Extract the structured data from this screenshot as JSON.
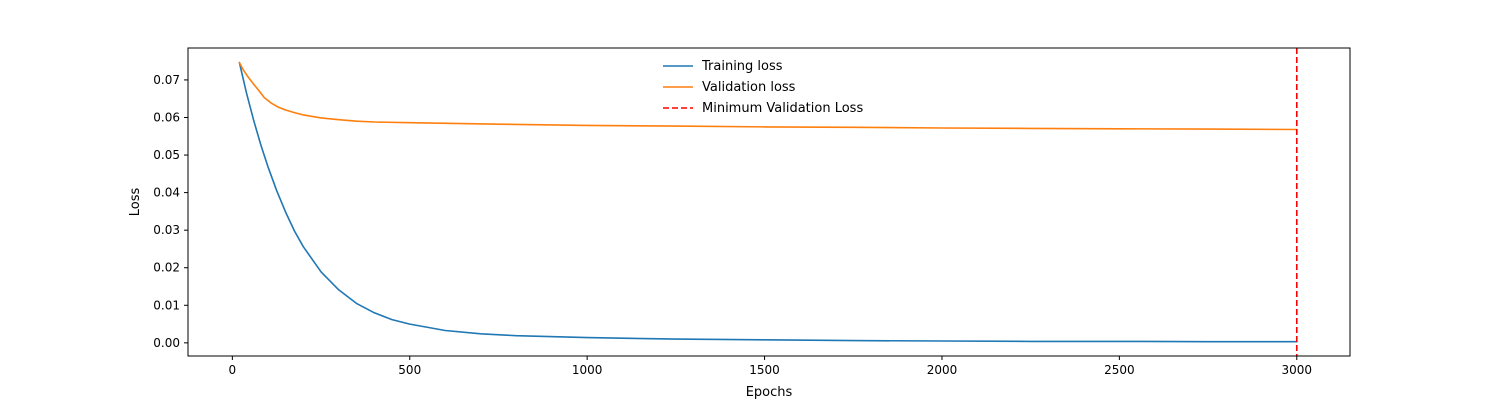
{
  "chart_data": {
    "type": "line",
    "title": "",
    "xlabel": "Epochs",
    "ylabel": "Loss",
    "xlim": [
      -125,
      3150
    ],
    "ylim": [
      -0.0035,
      0.0785
    ],
    "xticks": [
      0,
      500,
      1000,
      1500,
      2000,
      2500,
      3000
    ],
    "xtick_labels": [
      "0",
      "500",
      "1000",
      "1500",
      "2000",
      "2500",
      "3000"
    ],
    "yticks": [
      0.0,
      0.01,
      0.02,
      0.03,
      0.04,
      0.05,
      0.06,
      0.07
    ],
    "ytick_labels": [
      "0.00",
      "0.01",
      "0.02",
      "0.03",
      "0.04",
      "0.05",
      "0.06",
      "0.07"
    ],
    "grid": false,
    "legend_position": "top-center",
    "series": [
      {
        "name": "Training loss",
        "color": "#1f77b4",
        "style": "solid",
        "x": [
          20,
          40,
          60,
          80,
          100,
          125,
          150,
          175,
          200,
          250,
          300,
          350,
          400,
          450,
          500,
          600,
          700,
          800,
          1000,
          1250,
          1500,
          1750,
          2000,
          2250,
          2500,
          2750,
          3000
        ],
        "y": [
          0.0746,
          0.0665,
          0.0593,
          0.0528,
          0.047,
          0.0405,
          0.0348,
          0.0298,
          0.0256,
          0.0189,
          0.0141,
          0.0105,
          0.008,
          0.0062,
          0.005,
          0.0033,
          0.0024,
          0.0019,
          0.0014,
          0.001,
          0.0008,
          0.0006,
          0.0005,
          0.0004,
          0.0004,
          0.0003,
          0.0003
        ]
      },
      {
        "name": "Validation loss",
        "color": "#ff7f0e",
        "style": "solid",
        "x": [
          20,
          30,
          45,
          60,
          75,
          90,
          110,
          130,
          150,
          175,
          200,
          250,
          300,
          350,
          400,
          500,
          750,
          1000,
          1250,
          1500,
          1750,
          2000,
          2250,
          2500,
          2750,
          3000
        ],
        "y": [
          0.0746,
          0.0728,
          0.0707,
          0.0689,
          0.0671,
          0.0653,
          0.0638,
          0.0627,
          0.062,
          0.0613,
          0.0607,
          0.0599,
          0.0594,
          0.059,
          0.0588,
          0.0586,
          0.0582,
          0.0579,
          0.0577,
          0.0575,
          0.0574,
          0.0572,
          0.0571,
          0.057,
          0.0569,
          0.0568
        ]
      }
    ],
    "vlines": [
      {
        "name": "Minimum Validation Loss",
        "x": 3000,
        "color": "#ff0000",
        "style": "dashed"
      }
    ]
  }
}
